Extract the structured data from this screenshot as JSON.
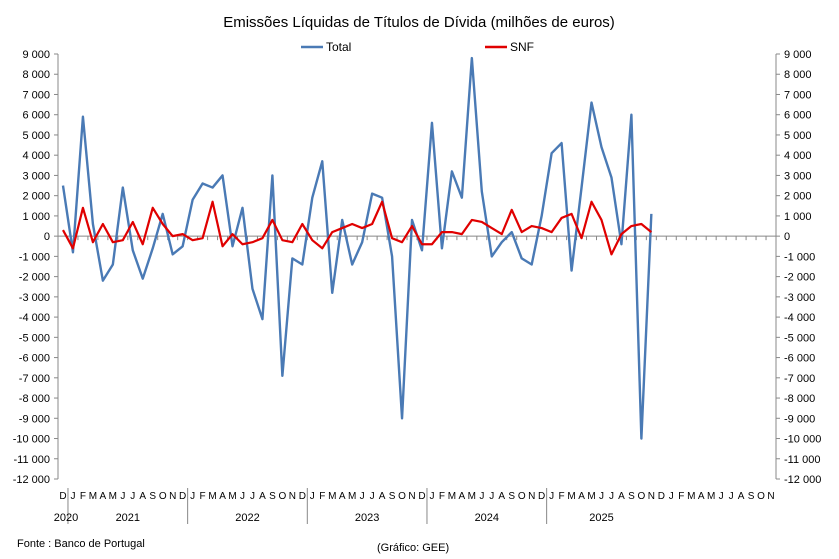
{
  "chart_data": {
    "type": "line",
    "title": "Emissões Líquidas de Títulos de Dívida (milhões de euros)",
    "ylim": [
      -12000,
      9000
    ],
    "ytick_step": 1000,
    "ytick_labels": [
      "9 000",
      "8 000",
      "7 000",
      "6 000",
      "5 000",
      "4 000",
      "3 000",
      "2 000",
      "1 000",
      "0",
      "-1 000",
      "-2 000",
      "-3 000",
      "-4 000",
      "-5 000",
      "-6 000",
      "-7 000",
      "-8 000",
      "-9 000",
      "-10 000",
      "-11 000",
      "-12 000"
    ],
    "month_labels": [
      "D",
      "J",
      "F",
      "M",
      "A",
      "M",
      "J",
      "J",
      "A",
      "S",
      "O",
      "N",
      "D",
      "J",
      "F",
      "M",
      "A",
      "M",
      "J",
      "J",
      "A",
      "S",
      "O",
      "N",
      "D",
      "J",
      "F",
      "M",
      "A",
      "M",
      "J",
      "J",
      "A",
      "S",
      "O",
      "N",
      "D",
      "J",
      "F",
      "M",
      "A",
      "M",
      "J",
      "J",
      "A",
      "S",
      "O",
      "N",
      "D",
      "J",
      "F",
      "M",
      "A",
      "M",
      "J",
      "J",
      "A",
      "S",
      "O",
      "N",
      "D",
      "J",
      "F",
      "M",
      "A",
      "M",
      "J",
      "J",
      "A",
      "S",
      "O",
      "N"
    ],
    "years": [
      {
        "label": "2020",
        "start": 0,
        "end": 0
      },
      {
        "label": "2021",
        "start": 1,
        "end": 12
      },
      {
        "label": "2022",
        "start": 13,
        "end": 24
      },
      {
        "label": "2023",
        "start": 25,
        "end": 36
      },
      {
        "label": "2024",
        "start": 37,
        "end": 48
      },
      {
        "label": "2025",
        "start": 49,
        "end": 59
      }
    ],
    "legend_position": "top",
    "grid": false,
    "series": [
      {
        "name": "Total",
        "color": "#4a7ab5",
        "values": [
          2500,
          -800,
          5900,
          600,
          -2200,
          -1400,
          2400,
          -700,
          -2100,
          -600,
          1100,
          -900,
          -500,
          1800,
          2600,
          2400,
          3000,
          -500,
          1400,
          -2600,
          -4100,
          3000,
          -6900,
          -1100,
          -1400,
          1900,
          3700,
          -2800,
          800,
          -1400,
          -300,
          2100,
          1900,
          -1000,
          -9000,
          800,
          -700,
          5600,
          -600,
          3200,
          1900,
          8800,
          2200,
          -1000,
          -300,
          200,
          -1100,
          -1400,
          1000,
          4100,
          4600,
          -1700,
          2400,
          6600,
          4400,
          2900,
          -400,
          6000,
          -10000,
          1100
        ]
      },
      {
        "name": "SNF",
        "color": "#e00000",
        "values": [
          300,
          -600,
          1400,
          -300,
          600,
          -300,
          -200,
          700,
          -400,
          1400,
          600,
          0,
          100,
          -200,
          -100,
          1700,
          -500,
          100,
          -400,
          -300,
          -100,
          800,
          -200,
          -300,
          600,
          -200,
          -600,
          200,
          400,
          600,
          400,
          600,
          1700,
          -100,
          -300,
          500,
          -400,
          -400,
          200,
          200,
          100,
          800,
          700,
          400,
          100,
          1300,
          200,
          500,
          400,
          200,
          900,
          1100,
          -100,
          1700,
          800,
          -900,
          100,
          500,
          600,
          200
        ]
      }
    ]
  },
  "footer": {
    "source": "Fonte : Banco de Portugal",
    "credit": "(Gráfico: GEE)"
  }
}
